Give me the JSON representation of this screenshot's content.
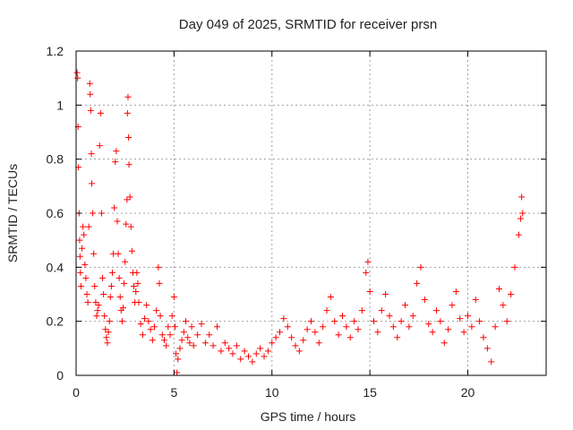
{
  "chart_data": {
    "type": "scatter",
    "title": "Day 049 of 2025, SRMTID for receiver prsn",
    "xlabel": "GPS time / hours",
    "ylabel": "SRMTID / TECUs",
    "xlim": [
      0,
      24
    ],
    "ylim": [
      0,
      1.2
    ],
    "xticks": [
      0,
      5,
      10,
      15,
      20
    ],
    "xtick_labels": [
      "0",
      "5",
      "10",
      "15",
      "20"
    ],
    "yticks": [
      0,
      0.2,
      0.4,
      0.6,
      0.8,
      1.0,
      1.2
    ],
    "ytick_labels": [
      "0",
      "0.2",
      "0.4",
      "0.6",
      "0.8",
      "1",
      "1.2"
    ],
    "grid": true,
    "marker": "+",
    "color": "#ff0000",
    "series": [
      {
        "name": "SRMTID",
        "points": [
          [
            0.05,
            1.12
          ],
          [
            0.08,
            1.1
          ],
          [
            0.1,
            0.92
          ],
          [
            0.12,
            0.77
          ],
          [
            0.15,
            0.6
          ],
          [
            0.18,
            0.5
          ],
          [
            0.2,
            0.44
          ],
          [
            0.22,
            0.38
          ],
          [
            0.25,
            0.33
          ],
          [
            0.3,
            0.47
          ],
          [
            0.35,
            0.55
          ],
          [
            0.4,
            0.52
          ],
          [
            0.45,
            0.41
          ],
          [
            0.5,
            0.36
          ],
          [
            0.55,
            0.3
          ],
          [
            0.6,
            0.27
          ],
          [
            0.65,
            0.55
          ],
          [
            0.7,
            1.08
          ],
          [
            0.72,
            1.04
          ],
          [
            0.75,
            0.98
          ],
          [
            0.78,
            0.82
          ],
          [
            0.8,
            0.71
          ],
          [
            0.85,
            0.6
          ],
          [
            0.9,
            0.45
          ],
          [
            0.95,
            0.33
          ],
          [
            1.0,
            0.27
          ],
          [
            1.05,
            0.22
          ],
          [
            1.1,
            0.24
          ],
          [
            1.15,
            0.26
          ],
          [
            1.2,
            0.85
          ],
          [
            1.25,
            0.97
          ],
          [
            1.3,
            0.6
          ],
          [
            1.35,
            0.36
          ],
          [
            1.4,
            0.3
          ],
          [
            1.45,
            0.22
          ],
          [
            1.5,
            0.17
          ],
          [
            1.55,
            0.14
          ],
          [
            1.6,
            0.12
          ],
          [
            1.65,
            0.16
          ],
          [
            1.7,
            0.2
          ],
          [
            1.75,
            0.29
          ],
          [
            1.8,
            0.33
          ],
          [
            1.85,
            0.38
          ],
          [
            1.9,
            0.45
          ],
          [
            1.95,
            0.62
          ],
          [
            2.0,
            0.79
          ],
          [
            2.05,
            0.83
          ],
          [
            2.1,
            0.57
          ],
          [
            2.15,
            0.45
          ],
          [
            2.2,
            0.36
          ],
          [
            2.25,
            0.29
          ],
          [
            2.3,
            0.24
          ],
          [
            2.35,
            0.2
          ],
          [
            2.4,
            0.25
          ],
          [
            2.45,
            0.34
          ],
          [
            2.5,
            0.42
          ],
          [
            2.55,
            0.56
          ],
          [
            2.6,
            0.65
          ],
          [
            2.62,
            0.97
          ],
          [
            2.65,
            1.03
          ],
          [
            2.68,
            0.88
          ],
          [
            2.7,
            0.78
          ],
          [
            2.75,
            0.66
          ],
          [
            2.8,
            0.55
          ],
          [
            2.85,
            0.46
          ],
          [
            2.9,
            0.38
          ],
          [
            2.95,
            0.33
          ],
          [
            3.0,
            0.27
          ],
          [
            3.05,
            0.31
          ],
          [
            3.1,
            0.38
          ],
          [
            3.15,
            0.34
          ],
          [
            3.2,
            0.27
          ],
          [
            3.3,
            0.19
          ],
          [
            3.4,
            0.15
          ],
          [
            3.5,
            0.21
          ],
          [
            3.6,
            0.26
          ],
          [
            3.7,
            0.2
          ],
          [
            3.8,
            0.17
          ],
          [
            3.9,
            0.13
          ],
          [
            4.0,
            0.18
          ],
          [
            4.1,
            0.24
          ],
          [
            4.2,
            0.4
          ],
          [
            4.25,
            0.34
          ],
          [
            4.3,
            0.22
          ],
          [
            4.4,
            0.15
          ],
          [
            4.5,
            0.13
          ],
          [
            4.6,
            0.11
          ],
          [
            4.7,
            0.18
          ],
          [
            4.8,
            0.15
          ],
          [
            4.9,
            0.22
          ],
          [
            5.0,
            0.29
          ],
          [
            5.05,
            0.18
          ],
          [
            5.1,
            0.08
          ],
          [
            5.15,
            0.01
          ],
          [
            5.2,
            0.06
          ],
          [
            5.3,
            0.1
          ],
          [
            5.4,
            0.13
          ],
          [
            5.5,
            0.16
          ],
          [
            5.6,
            0.2
          ],
          [
            5.7,
            0.14
          ],
          [
            5.8,
            0.12
          ],
          [
            5.9,
            0.18
          ],
          [
            6.0,
            0.11
          ],
          [
            6.2,
            0.15
          ],
          [
            6.4,
            0.19
          ],
          [
            6.6,
            0.12
          ],
          [
            6.8,
            0.15
          ],
          [
            7.0,
            0.11
          ],
          [
            7.2,
            0.18
          ],
          [
            7.4,
            0.09
          ],
          [
            7.6,
            0.12
          ],
          [
            7.8,
            0.1
          ],
          [
            8.0,
            0.08
          ],
          [
            8.2,
            0.11
          ],
          [
            8.4,
            0.06
          ],
          [
            8.6,
            0.09
          ],
          [
            8.8,
            0.07
          ],
          [
            9.0,
            0.05
          ],
          [
            9.2,
            0.08
          ],
          [
            9.4,
            0.1
          ],
          [
            9.6,
            0.07
          ],
          [
            9.8,
            0.09
          ],
          [
            10.0,
            0.12
          ],
          [
            10.2,
            0.14
          ],
          [
            10.4,
            0.16
          ],
          [
            10.6,
            0.21
          ],
          [
            10.8,
            0.18
          ],
          [
            11.0,
            0.14
          ],
          [
            11.2,
            0.11
          ],
          [
            11.4,
            0.09
          ],
          [
            11.6,
            0.13
          ],
          [
            11.8,
            0.17
          ],
          [
            12.0,
            0.2
          ],
          [
            12.2,
            0.16
          ],
          [
            12.4,
            0.12
          ],
          [
            12.6,
            0.18
          ],
          [
            12.8,
            0.24
          ],
          [
            13.0,
            0.29
          ],
          [
            13.2,
            0.2
          ],
          [
            13.4,
            0.15
          ],
          [
            13.6,
            0.22
          ],
          [
            13.8,
            0.18
          ],
          [
            14.0,
            0.14
          ],
          [
            14.2,
            0.2
          ],
          [
            14.4,
            0.17
          ],
          [
            14.6,
            0.24
          ],
          [
            14.8,
            0.38
          ],
          [
            14.9,
            0.42
          ],
          [
            15.0,
            0.31
          ],
          [
            15.2,
            0.2
          ],
          [
            15.4,
            0.16
          ],
          [
            15.6,
            0.24
          ],
          [
            15.8,
            0.3
          ],
          [
            16.0,
            0.22
          ],
          [
            16.2,
            0.18
          ],
          [
            16.4,
            0.14
          ],
          [
            16.6,
            0.2
          ],
          [
            16.8,
            0.26
          ],
          [
            17.0,
            0.18
          ],
          [
            17.2,
            0.22
          ],
          [
            17.4,
            0.34
          ],
          [
            17.6,
            0.4
          ],
          [
            17.8,
            0.28
          ],
          [
            18.0,
            0.19
          ],
          [
            18.2,
            0.16
          ],
          [
            18.4,
            0.24
          ],
          [
            18.6,
            0.2
          ],
          [
            18.8,
            0.12
          ],
          [
            19.0,
            0.17
          ],
          [
            19.2,
            0.26
          ],
          [
            19.4,
            0.31
          ],
          [
            19.6,
            0.21
          ],
          [
            19.8,
            0.16
          ],
          [
            20.0,
            0.22
          ],
          [
            20.2,
            0.18
          ],
          [
            20.4,
            0.28
          ],
          [
            20.6,
            0.2
          ],
          [
            20.8,
            0.14
          ],
          [
            21.0,
            0.1
          ],
          [
            21.2,
            0.05
          ],
          [
            21.4,
            0.18
          ],
          [
            21.6,
            0.32
          ],
          [
            21.8,
            0.26
          ],
          [
            22.0,
            0.2
          ],
          [
            22.2,
            0.3
          ],
          [
            22.4,
            0.4
          ],
          [
            22.6,
            0.52
          ],
          [
            22.7,
            0.58
          ],
          [
            22.75,
            0.66
          ],
          [
            22.8,
            0.6
          ]
        ]
      }
    ]
  }
}
